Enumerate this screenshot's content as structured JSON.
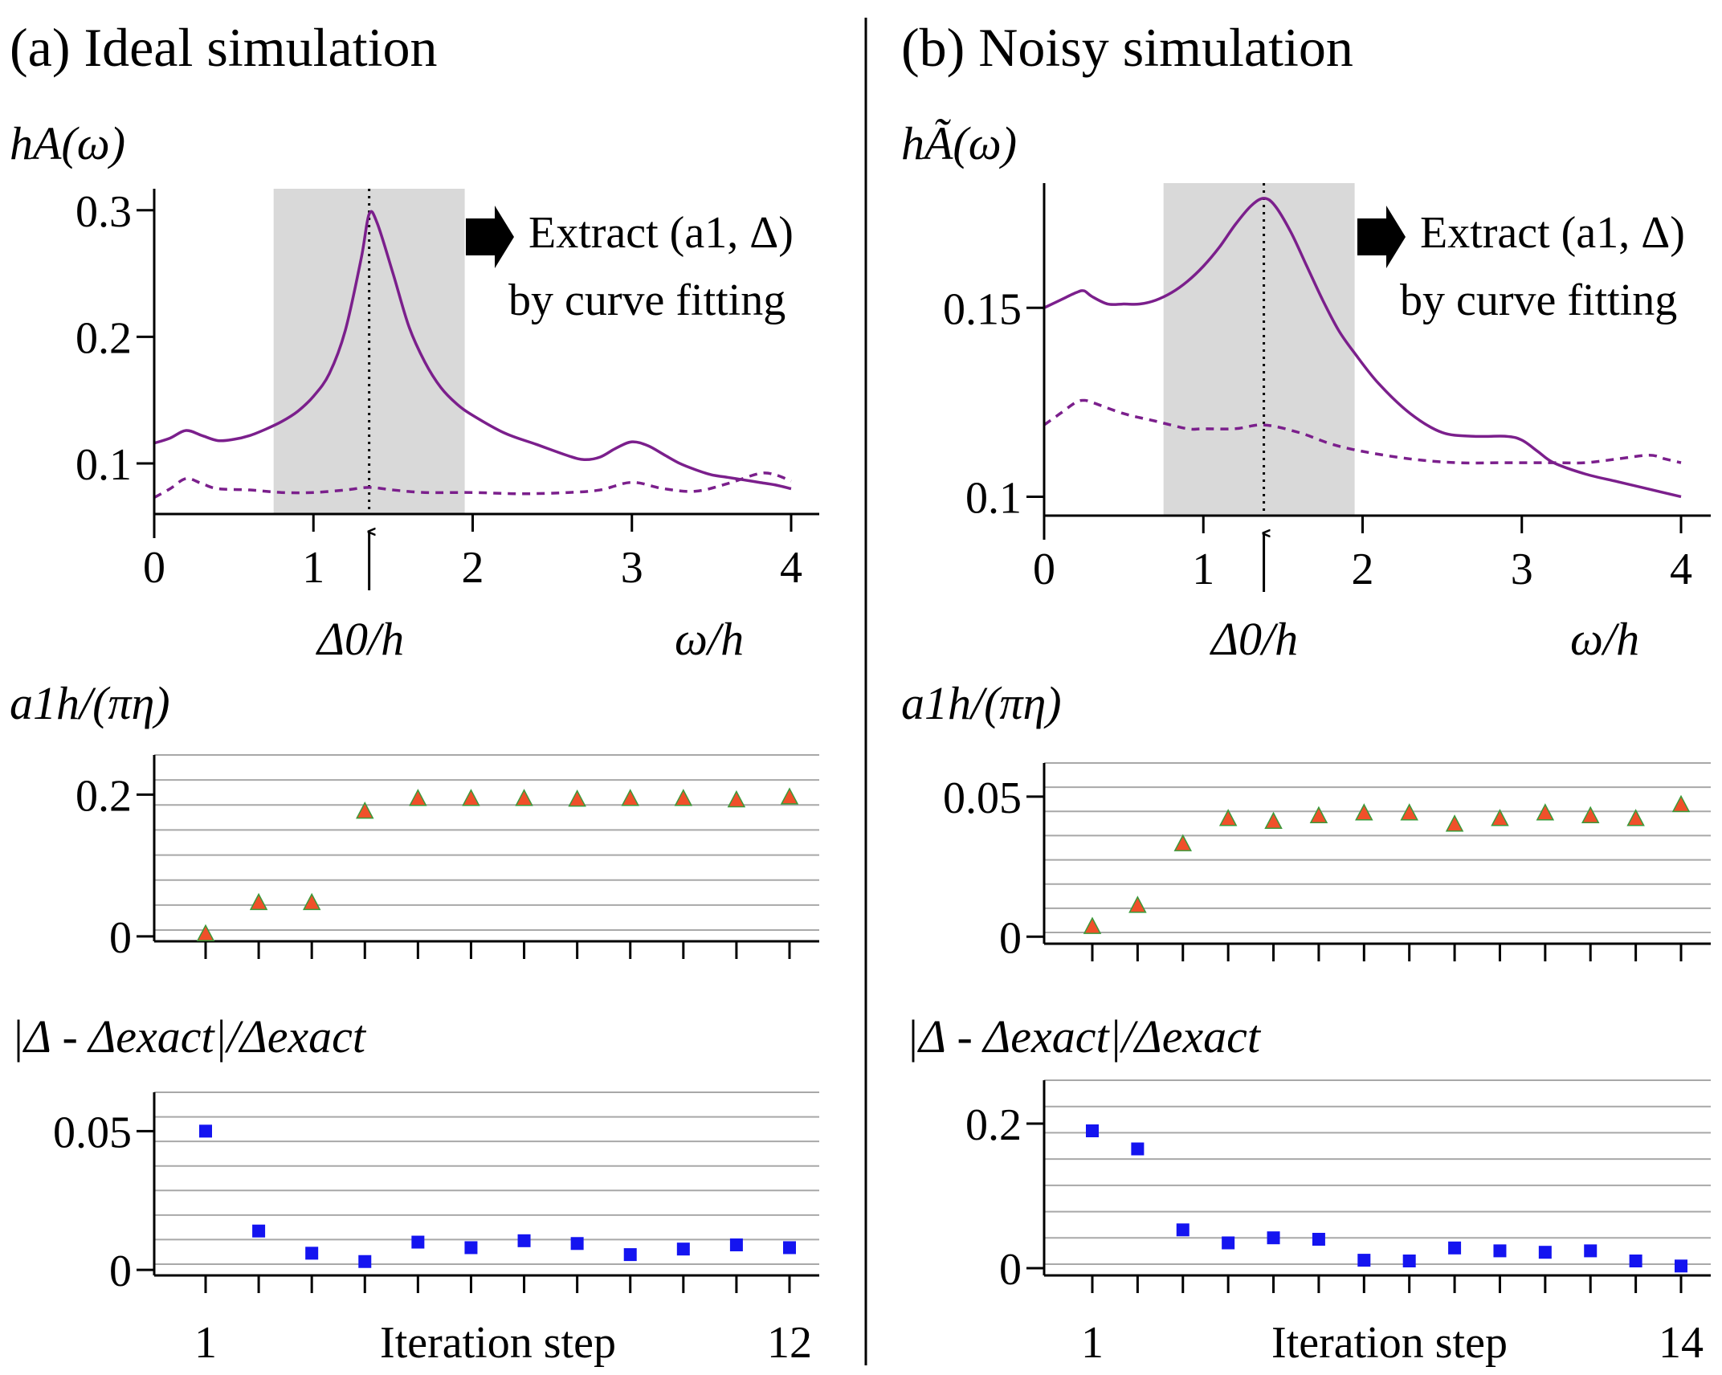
{
  "panels": {
    "a": {
      "title": "(a) Ideal simulation"
    },
    "b": {
      "title": "(b) Noisy simulation"
    }
  },
  "chart_data": [
    {
      "id": "a-spectrum",
      "type": "line",
      "ylabel": "hA(ω)",
      "xlabel": "ω/h",
      "x_ticks": [
        "0",
        "1",
        "2",
        "3",
        "4"
      ],
      "y_ticks": [
        "0.1",
        "0.2",
        "0.3"
      ],
      "xlim": [
        0,
        4.15
      ],
      "ylim": [
        0.06,
        0.317
      ],
      "shaded_region": [
        0.75,
        1.95
      ],
      "marker": {
        "x": 1.35,
        "label": "Δ0/h"
      },
      "annotation": {
        "line1": "Extract (a1, Δ)",
        "line2": "by curve fitting"
      },
      "series": [
        {
          "name": "solid",
          "style": "solid",
          "x": [
            0,
            0.1,
            0.2,
            0.3,
            0.4,
            0.5,
            0.6,
            0.7,
            0.8,
            0.9,
            1.0,
            1.1,
            1.2,
            1.3,
            1.35,
            1.4,
            1.5,
            1.6,
            1.7,
            1.8,
            1.9,
            2.0,
            2.2,
            2.4,
            2.6,
            2.7,
            2.8,
            2.9,
            3.0,
            3.1,
            3.2,
            3.3,
            3.4,
            3.5,
            3.6,
            3.7,
            3.8,
            3.9,
            4.0
          ],
          "y": [
            0.116,
            0.12,
            0.126,
            0.122,
            0.118,
            0.119,
            0.122,
            0.127,
            0.133,
            0.141,
            0.153,
            0.171,
            0.205,
            0.262,
            0.297,
            0.29,
            0.25,
            0.208,
            0.18,
            0.16,
            0.147,
            0.138,
            0.124,
            0.115,
            0.106,
            0.103,
            0.105,
            0.112,
            0.117,
            0.114,
            0.107,
            0.1,
            0.095,
            0.091,
            0.089,
            0.087,
            0.085,
            0.083,
            0.08
          ]
        },
        {
          "name": "dashed",
          "style": "dashed",
          "x": [
            0,
            0.1,
            0.2,
            0.3,
            0.4,
            0.6,
            0.8,
            1.0,
            1.2,
            1.35,
            1.5,
            1.7,
            2.0,
            2.3,
            2.6,
            2.8,
            3.0,
            3.2,
            3.4,
            3.6,
            3.8,
            3.9,
            4.0
          ],
          "y": [
            0.073,
            0.08,
            0.088,
            0.084,
            0.08,
            0.079,
            0.077,
            0.077,
            0.079,
            0.081,
            0.079,
            0.077,
            0.077,
            0.076,
            0.077,
            0.079,
            0.085,
            0.08,
            0.078,
            0.084,
            0.092,
            0.091,
            0.086
          ]
        }
      ]
    },
    {
      "id": "b-spectrum",
      "type": "line",
      "ylabel": "hÃ(ω)",
      "xlabel": "ω/h",
      "x_ticks": [
        "0",
        "1",
        "2",
        "3",
        "4"
      ],
      "y_ticks": [
        "0.1",
        "0.15"
      ],
      "xlim": [
        0,
        4.15
      ],
      "ylim": [
        0.095,
        0.183
      ],
      "shaded_region": [
        0.75,
        1.95
      ],
      "marker": {
        "x": 1.38,
        "label": "Δ0/h"
      },
      "annotation": {
        "line1": "Extract (a1, Δ)",
        "line2": "by curve fitting"
      },
      "series": [
        {
          "name": "solid",
          "style": "solid",
          "x": [
            0,
            0.1,
            0.2,
            0.25,
            0.3,
            0.4,
            0.5,
            0.6,
            0.7,
            0.8,
            0.9,
            1.0,
            1.1,
            1.2,
            1.3,
            1.38,
            1.45,
            1.55,
            1.65,
            1.75,
            1.85,
            1.95,
            2.1,
            2.3,
            2.5,
            2.7,
            2.9,
            3.0,
            3.1,
            3.2,
            3.4,
            3.6,
            3.8,
            4.0
          ],
          "y": [
            0.15,
            0.152,
            0.154,
            0.1545,
            0.153,
            0.151,
            0.151,
            0.151,
            0.152,
            0.154,
            0.157,
            0.161,
            0.166,
            0.172,
            0.177,
            0.179,
            0.177,
            0.17,
            0.161,
            0.152,
            0.144,
            0.138,
            0.13,
            0.122,
            0.117,
            0.116,
            0.116,
            0.115,
            0.112,
            0.109,
            0.106,
            0.104,
            0.102,
            0.1
          ]
        },
        {
          "name": "dashed",
          "style": "dashed",
          "x": [
            0,
            0.1,
            0.2,
            0.25,
            0.3,
            0.5,
            0.7,
            0.9,
            1.0,
            1.2,
            1.38,
            1.6,
            1.8,
            2.0,
            2.3,
            2.6,
            2.9,
            3.2,
            3.4,
            3.6,
            3.8,
            3.9,
            4.0
          ],
          "y": [
            0.119,
            0.122,
            0.125,
            0.1255,
            0.125,
            0.122,
            0.12,
            0.118,
            0.118,
            0.118,
            0.119,
            0.117,
            0.114,
            0.112,
            0.11,
            0.109,
            0.109,
            0.109,
            0.109,
            0.11,
            0.111,
            0.11,
            0.109
          ]
        }
      ]
    },
    {
      "id": "a-amplitude",
      "type": "scatter",
      "marker_shape": "triangle",
      "ylabel": "a1h/(πη)",
      "y_ticks": [
        "0",
        "0.2"
      ],
      "ylim": [
        -0.007,
        0.256
      ],
      "x": [
        1,
        2,
        3,
        4,
        5,
        6,
        7,
        8,
        9,
        10,
        11,
        12
      ],
      "y": [
        0.003,
        0.047,
        0.047,
        0.176,
        0.194,
        0.194,
        0.194,
        0.193,
        0.194,
        0.194,
        0.192,
        0.196
      ]
    },
    {
      "id": "b-amplitude",
      "type": "scatter",
      "marker_shape": "triangle",
      "ylabel": "a1h/(πη)",
      "y_ticks": [
        "0",
        "0.05"
      ],
      "ylim": [
        -0.0025,
        0.062
      ],
      "x": [
        1,
        2,
        3,
        4,
        5,
        6,
        7,
        8,
        9,
        10,
        11,
        12,
        13,
        14
      ],
      "y": [
        0.0035,
        0.011,
        0.033,
        0.042,
        0.041,
        0.043,
        0.044,
        0.044,
        0.04,
        0.042,
        0.044,
        0.043,
        0.042,
        0.047
      ]
    },
    {
      "id": "a-gap-error",
      "type": "scatter",
      "marker_shape": "square",
      "ylabel": "|Δ - Δexact|/Δexact",
      "xlabel": "Iteration step",
      "x_ticks": [
        "1",
        "12"
      ],
      "y_ticks": [
        "0",
        "0.05"
      ],
      "ylim": [
        -0.002,
        0.064
      ],
      "x": [
        1,
        2,
        3,
        4,
        5,
        6,
        7,
        8,
        9,
        10,
        11,
        12
      ],
      "y": [
        0.05,
        0.014,
        0.006,
        0.003,
        0.01,
        0.008,
        0.0105,
        0.0095,
        0.0055,
        0.0075,
        0.009,
        0.008
      ]
    },
    {
      "id": "b-gap-error",
      "type": "scatter",
      "marker_shape": "square",
      "ylabel": "|Δ - Δexact|/Δexact",
      "xlabel": "Iteration step",
      "x_ticks": [
        "1",
        "14"
      ],
      "y_ticks": [
        "0",
        "0.2"
      ],
      "ylim": [
        -0.01,
        0.26
      ],
      "x": [
        1,
        2,
        3,
        4,
        5,
        6,
        7,
        8,
        9,
        10,
        11,
        12,
        13,
        14
      ],
      "y": [
        0.19,
        0.165,
        0.053,
        0.035,
        0.042,
        0.04,
        0.011,
        0.01,
        0.028,
        0.024,
        0.022,
        0.024,
        0.01,
        0.003
      ]
    }
  ],
  "colors": {
    "curve": "#7b1f8c",
    "shade": "#d9d9d9",
    "triangle_fill": "#f0502a",
    "triangle_edge": "#3a9a3a",
    "square": "#1414f0",
    "grid": "#a8a8a8"
  }
}
